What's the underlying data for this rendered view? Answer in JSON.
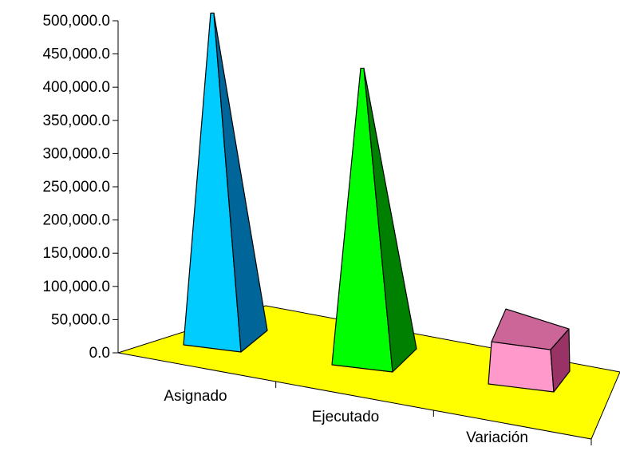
{
  "chart_data": {
    "type": "bar",
    "style": "3d-pyramid",
    "categories": [
      "Asignado",
      "Ejecutado",
      "Variación"
    ],
    "values": [
      505000,
      452000,
      42000
    ],
    "ylim": [
      0,
      500000
    ],
    "yticks": [
      0,
      50000,
      100000,
      150000,
      200000,
      250000,
      300000,
      350000,
      400000,
      450000,
      500000
    ],
    "ytick_labels": [
      "0.0",
      "50,000.0",
      "100,000.0",
      "150,000.0",
      "200,000.0",
      "250,000.0",
      "300,000.0",
      "350,000.0",
      "400,000.0",
      "450,000.0",
      "500,000.0"
    ],
    "grid": false,
    "legend": "none",
    "colors": {
      "floor": "#ffff00",
      "bars": [
        {
          "front": "#00ccff",
          "side": "#006699",
          "top": "#33ccff"
        },
        {
          "front": "#00ff00",
          "side": "#008000",
          "top": "#33ff33"
        },
        {
          "front": "#ff99cc",
          "side": "#993366",
          "top": "#cc6699"
        }
      ]
    }
  }
}
